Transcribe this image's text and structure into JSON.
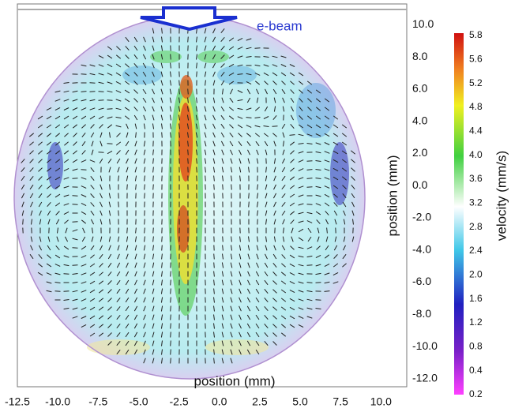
{
  "chart_data": {
    "type": "vector-field",
    "xlabel": "position (mm)",
    "ylabel": "position (mm)",
    "annotation": "e-beam",
    "xlim": [
      -12.5,
      11.5
    ],
    "xticks": [
      -12.5,
      {
        "value": -10,
        "label": "-10.0"
      },
      -7.5,
      {
        "value": -5,
        "label": "-5.0"
      },
      -2.5,
      {
        "value": 0,
        "label": "0.0"
      },
      2.5,
      {
        "value": 5,
        "label": "5.0"
      },
      7.5,
      {
        "value": 10,
        "label": "10.0"
      }
    ],
    "ylim": [
      -12.5,
      11.3
    ],
    "yticks": [
      {
        "value": 10,
        "label": "10.0"
      },
      {
        "value": 8,
        "label": "8.0"
      },
      {
        "value": 6,
        "label": "6.0"
      },
      {
        "value": 4,
        "label": "4.0"
      },
      {
        "value": 2,
        "label": "2.0"
      },
      {
        "value": 0,
        "label": "0.0"
      },
      {
        "value": -2,
        "label": "-2.0"
      },
      {
        "value": -4,
        "label": "-4.0"
      },
      {
        "value": -6,
        "label": "-6.0"
      },
      {
        "value": -8,
        "label": "-8.0"
      },
      {
        "value": -10,
        "label": "-10.0"
      },
      {
        "value": -12,
        "label": "-12.0"
      }
    ],
    "colorbar": {
      "label": "velocity (mm/s)",
      "ticks": [
        0.2,
        0.4,
        0.8,
        1.2,
        1.6,
        {
          "value": 2,
          "label": "2.0"
        },
        2.4,
        2.8,
        3.2,
        3.6,
        {
          "value": 4,
          "label": "4.0"
        },
        4.4,
        4.8,
        5.2,
        5.6,
        5.8
      ]
    }
  }
}
